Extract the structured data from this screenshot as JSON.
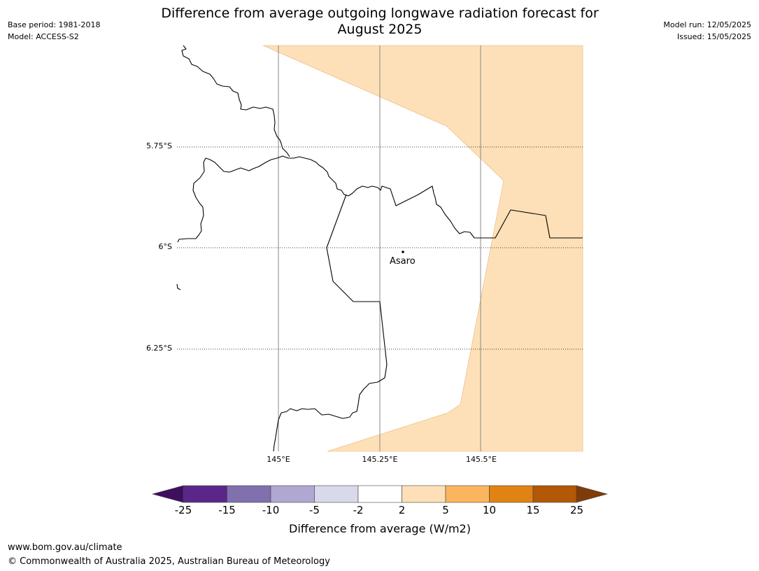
{
  "header": {
    "title_line1": "Difference from average outgoing longwave radiation forecast for",
    "title_line2": "August 2025",
    "base_period": "Base period: 1981-2018",
    "model": "Model: ACCESS-S2",
    "model_run": "Model run: 12/05/2025",
    "issued": "Issued: 15/05/2025"
  },
  "map": {
    "lat_labels": [
      "5.75°S",
      "6°S",
      "6.25°S"
    ],
    "lon_labels": [
      "145°E",
      "145.25°E",
      "145.5°E"
    ],
    "place": "Asaro",
    "colors": {
      "land_line": "#000000",
      "shade_2_5": "#fde0b7",
      "grid": "#888888"
    }
  },
  "colorbar": {
    "ticks": [
      "-25",
      "-15",
      "-10",
      "-5",
      "-2",
      "2",
      "5",
      "10",
      "15",
      "25"
    ],
    "colors": [
      "#3f0e5e",
      "#5a2789",
      "#8170ae",
      "#b0a7d2",
      "#d8d9eb",
      "#ffffff",
      "#fde0b7",
      "#fbb55e",
      "#e08214",
      "#b25806",
      "#7f3b08"
    ],
    "label": "Difference from average (W/m2)"
  },
  "footer": {
    "url": "www.bom.gov.au/climate",
    "copyright": "© Commonwealth of Australia 2025, Australian Bureau of Meteorology"
  }
}
